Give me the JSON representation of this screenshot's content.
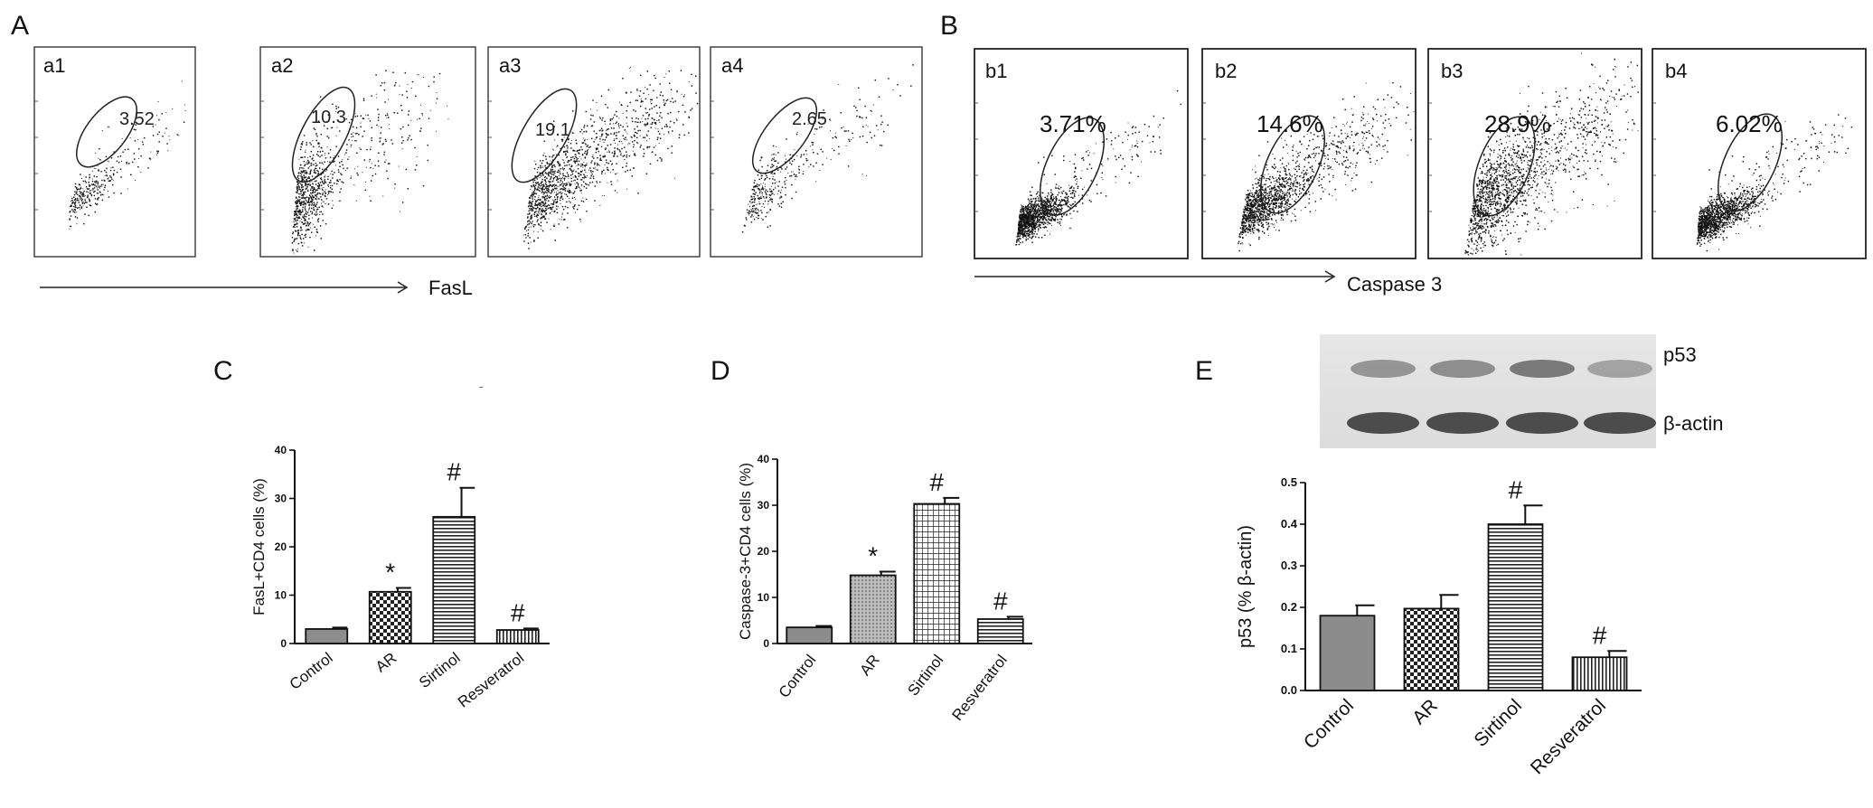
{
  "figure": {
    "panels": {
      "A": "A",
      "B": "B",
      "C": "C",
      "D": "D",
      "E": "E"
    },
    "stray_mark": "-"
  },
  "flow_A": {
    "axis_title": "FasL",
    "plots": [
      {
        "label": "a1",
        "percent": "3.52"
      },
      {
        "label": "a2",
        "percent": "10.3"
      },
      {
        "label": "a3",
        "percent": "19.1"
      },
      {
        "label": "a4",
        "percent": "2.65"
      }
    ]
  },
  "flow_B": {
    "axis_title": "Caspase 3",
    "plots": [
      {
        "label": "b1",
        "percent": "3.71%"
      },
      {
        "label": "b2",
        "percent": "14.6%"
      },
      {
        "label": "b3",
        "percent": "28.9%"
      },
      {
        "label": "b4",
        "percent": "6.02%"
      }
    ]
  },
  "blot": {
    "labels": [
      "p53",
      "β-actin"
    ]
  },
  "chart_data": [
    {
      "panel": "C",
      "type": "bar",
      "ylabel": "FasL+CD4 cells (%)",
      "ylim": [
        0,
        40
      ],
      "yticks": [
        "0",
        "10",
        "20",
        "30",
        "40"
      ],
      "categories": [
        "Control",
        "AR",
        "Sirtinol",
        "Resveratrol"
      ],
      "values": [
        3,
        10.7,
        26.2,
        2.8
      ],
      "errors": [
        0.3,
        0.8,
        6.0,
        0.3
      ],
      "annotations": [
        "",
        "*",
        "#",
        "#"
      ],
      "patterns": [
        "solid",
        "check",
        "hlines",
        "vlines"
      ]
    },
    {
      "panel": "D",
      "type": "bar",
      "ylabel": "Caspase-3+CD4 cells (%)",
      "ylim": [
        0,
        40
      ],
      "yticks": [
        "0",
        "10",
        "20",
        "30",
        "40"
      ],
      "categories": [
        "Control",
        "AR",
        "Sirtinol",
        "Resveratrol"
      ],
      "values": [
        3.5,
        14.8,
        30.3,
        5.3
      ],
      "errors": [
        0.3,
        0.8,
        1.3,
        0.5
      ],
      "annotations": [
        "",
        "*",
        "#",
        "#"
      ],
      "patterns": [
        "solid",
        "dots",
        "grid",
        "hlines"
      ]
    },
    {
      "panel": "E",
      "type": "bar",
      "ylabel": "p53  (% β-actin)",
      "ylim": [
        0,
        0.5
      ],
      "yticks": [
        "0.0",
        "0.1",
        "0.2",
        "0.3",
        "0.4",
        "0.5"
      ],
      "categories": [
        "Control",
        "AR",
        "Sirtinol",
        "Resveratrol"
      ],
      "values": [
        0.18,
        0.197,
        0.4,
        0.08
      ],
      "errors": [
        0.025,
        0.033,
        0.045,
        0.015
      ],
      "annotations": [
        "",
        "",
        "#",
        "#"
      ],
      "patterns": [
        "solid",
        "check",
        "hlines",
        "vlines"
      ]
    }
  ]
}
